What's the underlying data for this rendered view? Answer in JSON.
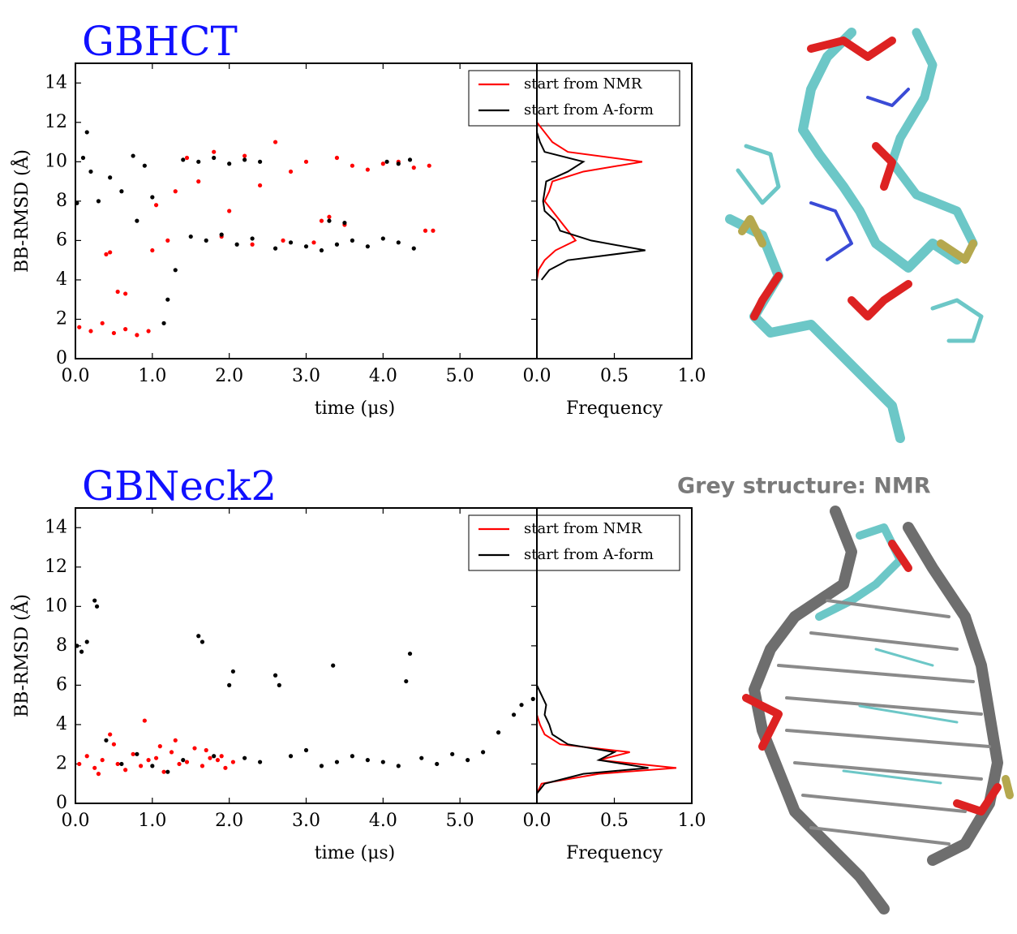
{
  "chart_data": [
    {
      "type": "scatter",
      "title": "GBHCT",
      "x_label": "time (μs)",
      "y_label": "BB-RMSD (Å)",
      "xlim": [
        0,
        6
      ],
      "xticks": [
        {
          "value": 0,
          "label": "0.0"
        },
        {
          "value": 1,
          "label": "1.0"
        },
        {
          "value": 2,
          "label": "2.0"
        },
        {
          "value": 3,
          "label": "3.0"
        },
        {
          "value": 4,
          "label": "4.0"
        },
        {
          "value": 5,
          "label": "5.0"
        }
      ],
      "ylim": [
        0,
        15
      ],
      "yticks": [
        0,
        2,
        4,
        6,
        8,
        10,
        12,
        14
      ],
      "legend": "upper right",
      "series": [
        {
          "name": "start from NMR",
          "color": "#ff0000",
          "x": [
            0.05,
            0.2,
            0.35,
            0.5,
            0.65,
            0.8,
            0.95,
            0.4,
            0.45,
            0.55,
            0.65,
            1.0,
            1.05,
            1.2,
            1.3,
            1.45,
            1.6,
            1.8,
            2.0,
            2.2,
            2.4,
            2.6,
            2.8,
            3.0,
            3.2,
            3.4,
            3.6,
            3.8,
            4.0,
            4.2,
            4.4,
            4.6,
            4.65,
            1.9,
            2.3,
            2.7,
            3.1,
            3.3,
            3.5,
            4.55
          ],
          "values": [
            1.6,
            1.4,
            1.8,
            1.3,
            1.5,
            1.2,
            1.4,
            5.3,
            5.4,
            3.4,
            3.3,
            5.5,
            7.8,
            6.0,
            8.5,
            10.2,
            9.0,
            10.5,
            7.5,
            10.3,
            8.8,
            11.0,
            9.5,
            10.0,
            7.0,
            10.2,
            9.8,
            9.6,
            9.9,
            10.0,
            9.7,
            9.8,
            6.5,
            6.2,
            5.8,
            6.0,
            5.9,
            7.2,
            6.8,
            6.5
          ]
        },
        {
          "name": "start from A-form",
          "color": "#000000",
          "x": [
            0.02,
            0.1,
            0.2,
            0.3,
            0.45,
            0.6,
            0.75,
            0.9,
            1.0,
            1.15,
            1.2,
            1.3,
            1.4,
            1.6,
            1.8,
            2.0,
            2.2,
            2.4,
            1.5,
            1.7,
            1.9,
            2.1,
            2.3,
            2.6,
            2.8,
            3.0,
            3.2,
            3.4,
            3.6,
            3.8,
            4.0,
            4.2,
            4.4,
            4.05,
            4.2,
            4.35,
            0.15,
            3.3,
            3.5,
            0.8
          ],
          "values": [
            7.9,
            10.2,
            9.5,
            8.0,
            9.2,
            8.5,
            10.3,
            9.8,
            8.2,
            1.8,
            3.0,
            4.5,
            10.1,
            10.0,
            10.2,
            9.9,
            10.1,
            10.0,
            6.2,
            6.0,
            6.3,
            5.8,
            6.1,
            5.6,
            5.9,
            5.7,
            5.5,
            5.8,
            6.0,
            5.7,
            6.1,
            5.9,
            5.6,
            10.0,
            9.9,
            10.1,
            11.5,
            7.0,
            6.9,
            7.0
          ]
        }
      ]
    },
    {
      "type": "line",
      "x_label": "Frequency",
      "xlim": [
        0,
        1
      ],
      "xticks": [
        {
          "value": 0,
          "label": "0.0"
        },
        {
          "value": 0.5,
          "label": "0.5"
        },
        {
          "value": 1,
          "label": "1.0"
        }
      ],
      "ylim": [
        0,
        15
      ],
      "y": [
        4,
        4.5,
        5,
        5.5,
        6,
        6.5,
        7,
        7.5,
        8,
        8.5,
        9,
        9.5,
        10,
        10.5,
        11,
        11.5,
        12
      ],
      "series": [
        {
          "color": "#ff0000",
          "values": [
            0,
            0.01,
            0.05,
            0.12,
            0.25,
            0.2,
            0.15,
            0.1,
            0.05,
            0.08,
            0.1,
            0.3,
            0.68,
            0.2,
            0.1,
            0.05,
            0
          ]
        },
        {
          "color": "#000000",
          "values": [
            0.03,
            0.08,
            0.2,
            0.7,
            0.35,
            0.15,
            0.12,
            0.05,
            0.04,
            0.05,
            0.06,
            0.2,
            0.3,
            0.05,
            0.02,
            0,
            0
          ]
        }
      ]
    },
    {
      "type": "scatter",
      "title": "GBNeck2",
      "x_label": "time (μs)",
      "y_label": "BB-RMSD (Å)",
      "xlim": [
        0,
        6
      ],
      "xticks": [
        {
          "value": 0,
          "label": "0.0"
        },
        {
          "value": 1,
          "label": "1.0"
        },
        {
          "value": 2,
          "label": "2.0"
        },
        {
          "value": 3,
          "label": "3.0"
        },
        {
          "value": 4,
          "label": "4.0"
        },
        {
          "value": 5,
          "label": "5.0"
        }
      ],
      "ylim": [
        0,
        15
      ],
      "yticks": [
        0,
        2,
        4,
        6,
        8,
        10,
        12,
        14
      ],
      "legend": "upper right",
      "series": [
        {
          "name": "start from NMR",
          "color": "#ff0000",
          "x": [
            0.05,
            0.15,
            0.25,
            0.35,
            0.45,
            0.55,
            0.65,
            0.75,
            0.85,
            0.95,
            1.05,
            1.15,
            1.25,
            1.35,
            1.45,
            1.55,
            1.65,
            1.75,
            1.85,
            1.95,
            2.05,
            0.5,
            0.9,
            1.3,
            1.7,
            0.3,
            1.1,
            1.9
          ],
          "values": [
            2.0,
            2.4,
            1.8,
            2.2,
            3.5,
            2.0,
            1.7,
            2.5,
            1.9,
            2.2,
            2.3,
            1.6,
            2.6,
            2.0,
            2.1,
            2.8,
            1.9,
            2.3,
            2.2,
            1.8,
            2.1,
            3.0,
            4.2,
            3.2,
            2.7,
            1.5,
            2.9,
            2.4
          ]
        },
        {
          "name": "start from A-form",
          "color": "#000000",
          "x": [
            0.02,
            0.08,
            0.15,
            0.25,
            0.28,
            0.4,
            0.6,
            0.8,
            1.0,
            1.2,
            1.4,
            1.6,
            1.65,
            1.8,
            2.0,
            2.05,
            2.2,
            2.4,
            2.6,
            2.65,
            2.8,
            3.0,
            3.2,
            3.35,
            3.4,
            3.6,
            3.8,
            4.0,
            4.2,
            4.3,
            4.35,
            4.5,
            4.7,
            4.9,
            5.1,
            5.3,
            5.5,
            5.7,
            5.8,
            5.95
          ],
          "values": [
            8.0,
            7.7,
            8.2,
            10.3,
            10.0,
            3.2,
            2.0,
            2.5,
            1.9,
            1.6,
            2.2,
            8.5,
            8.2,
            2.4,
            6.0,
            6.7,
            2.3,
            2.1,
            6.5,
            6.0,
            2.4,
            2.7,
            1.9,
            7.0,
            2.1,
            2.4,
            2.2,
            2.1,
            1.9,
            6.2,
            7.6,
            2.3,
            2.0,
            2.5,
            2.2,
            2.6,
            3.6,
            4.5,
            5.0,
            5.3
          ]
        }
      ]
    },
    {
      "type": "line",
      "x_label": "Frequency",
      "xlim": [
        0,
        1
      ],
      "xticks": [
        {
          "value": 0,
          "label": "0.0"
        },
        {
          "value": 0.5,
          "label": "0.5"
        },
        {
          "value": 1,
          "label": "1.0"
        }
      ],
      "ylim": [
        0,
        15
      ],
      "y": [
        0.5,
        1,
        1.5,
        1.8,
        2.2,
        2.6,
        3,
        3.5,
        4,
        4.5,
        5,
        5.5,
        6
      ],
      "series": [
        {
          "color": "#ff0000",
          "values": [
            0,
            0.03,
            0.4,
            0.9,
            0.4,
            0.6,
            0.15,
            0.05,
            0.02,
            0,
            0,
            0,
            0
          ]
        },
        {
          "color": "#000000",
          "values": [
            0,
            0.05,
            0.3,
            0.72,
            0.4,
            0.5,
            0.2,
            0.1,
            0.08,
            0.05,
            0.06,
            0.03,
            0
          ]
        }
      ]
    }
  ],
  "annotation": {
    "text": "Grey structure: NMR"
  }
}
